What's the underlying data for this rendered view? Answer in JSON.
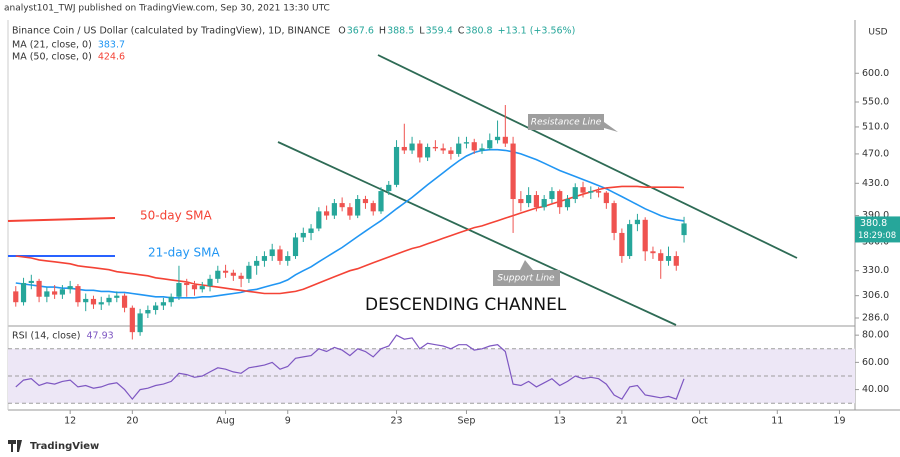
{
  "header": {
    "publisher": "analyst101_TWJ published on TradingView.com, Sep 30, 2021 13:30 UTC",
    "currency": "USD",
    "logo": "TradingView"
  },
  "legend": {
    "symbol": "Binance Coin / US Dollar (calculated by TradingView), 1D, BINANCE",
    "ohlc_labels": [
      "O",
      "H",
      "L",
      "C"
    ],
    "change": "+13.1 (+3.56%)",
    "countdown": "18:29:08"
  },
  "chart_data": [
    {
      "type": "candlestick",
      "log_scale": true,
      "grid": false,
      "up_color": "#26a69a",
      "down_color": "#ef5350",
      "x": [
        "Jul 5",
        "Jul 6",
        "Jul 7",
        "Jul 8",
        "Jul 9",
        "Jul 10",
        "Jul 11",
        "Jul 12",
        "Jul 13",
        "Jul 14",
        "Jul 15",
        "Jul 16",
        "Jul 17",
        "Jul 18",
        "Jul 19",
        "Jul 20",
        "Jul 21",
        "Jul 22",
        "Jul 23",
        "Jul 24",
        "Jul 25",
        "Jul 26",
        "Jul 27",
        "Jul 28",
        "Jul 29",
        "Jul 30",
        "Jul 31",
        "Aug 1",
        "Aug 2",
        "Aug 3",
        "Aug 4",
        "Aug 5",
        "Aug 6",
        "Aug 7",
        "Aug 8",
        "Aug 9",
        "Aug 10",
        "Aug 11",
        "Aug 12",
        "Aug 13",
        "Aug 14",
        "Aug 15",
        "Aug 16",
        "Aug 17",
        "Aug 18",
        "Aug 19",
        "Aug 20",
        "Aug 21",
        "Aug 22",
        "Aug 23",
        "Aug 24",
        "Aug 25",
        "Aug 26",
        "Aug 27",
        "Aug 28",
        "Aug 29",
        "Aug 30",
        "Aug 31",
        "Sep 1",
        "Sep 2",
        "Sep 3",
        "Sep 4",
        "Sep 5",
        "Sep 6",
        "Sep 7",
        "Sep 8",
        "Sep 9",
        "Sep 10",
        "Sep 11",
        "Sep 12",
        "Sep 13",
        "Sep 14",
        "Sep 15",
        "Sep 16",
        "Sep 17",
        "Sep 18",
        "Sep 19",
        "Sep 20",
        "Sep 21",
        "Sep 22",
        "Sep 23",
        "Sep 24",
        "Sep 25",
        "Sep 26",
        "Sep 27",
        "Sep 28",
        "Sep 29"
      ],
      "candles": [
        [
          310,
          315,
          296,
          300
        ],
        [
          300,
          323,
          297,
          318
        ],
        [
          318,
          326,
          312,
          320
        ],
        [
          320,
          322,
          300,
          305
        ],
        [
          305,
          314,
          300,
          310
        ],
        [
          310,
          316,
          303,
          307
        ],
        [
          307,
          316,
          303,
          312
        ],
        [
          312,
          320,
          308,
          315
        ],
        [
          315,
          317,
          296,
          300
        ],
        [
          300,
          308,
          292,
          303
        ],
        [
          303,
          306,
          294,
          298
        ],
        [
          298,
          305,
          293,
          300
        ],
        [
          300,
          307,
          297,
          304
        ],
        [
          304,
          310,
          300,
          306
        ],
        [
          306,
          308,
          291,
          295
        ],
        [
          295,
          297,
          268,
          274
        ],
        [
          274,
          294,
          271,
          290
        ],
        [
          290,
          297,
          286,
          293
        ],
        [
          293,
          300,
          289,
          297
        ],
        [
          297,
          304,
          293,
          300
        ],
        [
          300,
          308,
          296,
          305
        ],
        [
          305,
          335,
          302,
          318
        ],
        [
          318,
          322,
          305,
          316
        ],
        [
          316,
          320,
          306,
          312
        ],
        [
          312,
          319,
          309,
          315
        ],
        [
          315,
          326,
          310,
          322
        ],
        [
          322,
          335,
          318,
          330
        ],
        [
          330,
          336,
          323,
          328
        ],
        [
          328,
          331,
          320,
          325
        ],
        [
          325,
          328,
          314,
          322
        ],
        [
          322,
          339,
          318,
          335
        ],
        [
          335,
          345,
          326,
          340
        ],
        [
          340,
          350,
          334,
          345
        ],
        [
          345,
          358,
          340,
          352
        ],
        [
          352,
          356,
          336,
          340
        ],
        [
          340,
          350,
          335,
          345
        ],
        [
          345,
          370,
          342,
          365
        ],
        [
          365,
          376,
          360,
          370
        ],
        [
          370,
          380,
          362,
          375
        ],
        [
          375,
          400,
          372,
          395
        ],
        [
          395,
          402,
          385,
          390
        ],
        [
          390,
          410,
          386,
          405
        ],
        [
          405,
          412,
          395,
          400
        ],
        [
          400,
          405,
          385,
          390
        ],
        [
          390,
          415,
          387,
          410
        ],
        [
          410,
          414,
          398,
          405
        ],
        [
          405,
          408,
          390,
          395
        ],
        [
          395,
          425,
          392,
          420
        ],
        [
          420,
          433,
          415,
          428
        ],
        [
          428,
          490,
          425,
          480
        ],
        [
          480,
          515,
          470,
          475
        ],
        [
          475,
          495,
          470,
          485
        ],
        [
          485,
          490,
          458,
          465
        ],
        [
          465,
          485,
          460,
          480
        ],
        [
          480,
          490,
          474,
          478
        ],
        [
          478,
          485,
          470,
          475
        ],
        [
          475,
          480,
          462,
          470
        ],
        [
          470,
          495,
          466,
          485
        ],
        [
          485,
          495,
          478,
          487
        ],
        [
          487,
          492,
          470,
          475
        ],
        [
          475,
          485,
          470,
          478
        ],
        [
          478,
          500,
          475,
          490
        ],
        [
          490,
          520,
          485,
          495
        ],
        [
          495,
          545,
          480,
          485
        ],
        [
          485,
          495,
          370,
          410
        ],
        [
          410,
          420,
          395,
          405
        ],
        [
          405,
          425,
          400,
          415
        ],
        [
          415,
          420,
          395,
          400
        ],
        [
          400,
          415,
          396,
          410
        ],
        [
          410,
          425,
          405,
          420
        ],
        [
          420,
          422,
          392,
          400
        ],
        [
          400,
          415,
          396,
          410
        ],
        [
          410,
          430,
          405,
          425
        ],
        [
          425,
          432,
          412,
          418
        ],
        [
          418,
          426,
          410,
          420
        ],
        [
          420,
          425,
          412,
          418
        ],
        [
          418,
          420,
          398,
          405
        ],
        [
          405,
          408,
          362,
          370
        ],
        [
          370,
          375,
          338,
          345
        ],
        [
          345,
          385,
          342,
          380
        ],
        [
          380,
          392,
          372,
          385
        ],
        [
          385,
          388,
          340,
          350
        ],
        [
          350,
          355,
          342,
          348
        ],
        [
          348,
          352,
          322,
          340
        ],
        [
          340,
          355,
          335,
          345
        ],
        [
          345,
          350,
          330,
          335
        ],
        [
          367.6,
          388.5,
          359.4,
          380.8
        ]
      ],
      "series": [
        {
          "name": "MA (21, close, 0)",
          "color": "#2196f3",
          "values": [
            318,
            317,
            316,
            315,
            314,
            314,
            313,
            313,
            312,
            311,
            311,
            310,
            310,
            309,
            309,
            308,
            307,
            306,
            305,
            305,
            304,
            304,
            304,
            304,
            305,
            305,
            306,
            307,
            308,
            309,
            311,
            312,
            314,
            316,
            318,
            321,
            326,
            330,
            334,
            339,
            344,
            349,
            354,
            360,
            366,
            372,
            378,
            384,
            391,
            398,
            405,
            412,
            420,
            428,
            436,
            444,
            452,
            460,
            467,
            472,
            475,
            476,
            476,
            475,
            473,
            470,
            466,
            462,
            457,
            452,
            447,
            443,
            439,
            435,
            431,
            427,
            423,
            418,
            413,
            408,
            403,
            398,
            394,
            390,
            387,
            385,
            383.7
          ]
        },
        {
          "name": "MA (50, close, 0)",
          "color": "#f44336",
          "values": [
            345,
            344,
            343,
            341,
            340,
            339,
            338,
            337,
            335,
            334,
            333,
            332,
            331,
            329,
            328,
            327,
            326,
            325,
            323,
            322,
            321,
            320,
            319,
            317,
            316,
            315,
            314,
            313,
            312,
            311,
            310,
            309,
            308,
            308,
            308,
            309,
            310,
            312,
            315,
            318,
            321,
            324,
            327,
            330,
            332,
            335,
            338,
            341,
            344,
            347,
            350,
            353,
            355,
            358,
            361,
            364,
            367,
            370,
            373,
            376,
            378,
            381,
            384,
            387,
            390,
            393,
            396,
            399,
            401,
            404,
            407,
            410,
            413,
            416,
            419,
            422,
            424,
            425,
            426,
            426,
            426,
            425,
            425,
            425,
            425,
            425,
            424.6
          ]
        }
      ],
      "ylim": [
        280,
        705
      ],
      "yticks": [
        {
          "value": 600,
          "label": "600.0"
        },
        {
          "value": 550,
          "label": "550.0"
        },
        {
          "value": 510,
          "label": "510.0"
        },
        {
          "value": 470,
          "label": "470.0"
        },
        {
          "value": 430,
          "label": "430.0"
        },
        {
          "value": 390,
          "label": "390.0"
        },
        {
          "value": 360,
          "label": "360.0"
        },
        {
          "value": 330,
          "label": "330.0"
        },
        {
          "value": 306,
          "label": "306.0"
        },
        {
          "value": 286,
          "label": "286.0"
        }
      ],
      "xlim": [
        "Jul 4",
        "Oct 21"
      ],
      "xticks": [
        {
          "value": "Jul 12",
          "label": "12"
        },
        {
          "value": "Jul 20",
          "label": "20"
        },
        {
          "value": "Aug 1",
          "label": "Aug"
        },
        {
          "value": "Aug 9",
          "label": "9"
        },
        {
          "value": "Aug 23",
          "label": "23"
        },
        {
          "value": "Sep 1",
          "label": "Sep"
        },
        {
          "value": "Sep 13",
          "label": "13"
        },
        {
          "value": "Sep 21",
          "label": "21"
        },
        {
          "value": "Oct 1",
          "label": "Oct"
        },
        {
          "value": "Oct 11",
          "label": "11"
        },
        {
          "value": "Oct 19",
          "label": "19"
        }
      ],
      "annotations": [
        "50-day SMA",
        "21-day SMA",
        "Resistance Line",
        "Support Line",
        "DESCENDING CHANNEL"
      ]
    },
    {
      "type": "line",
      "series": [
        {
          "name": "RSI (14, close)",
          "color": "#7e57c2",
          "values": [
            42,
            47,
            48,
            43,
            45,
            44,
            46,
            47,
            42,
            43,
            41,
            42,
            44,
            45,
            40,
            33,
            40,
            41,
            43,
            44,
            46,
            52,
            51,
            49,
            50,
            53,
            56,
            55,
            53,
            52,
            56,
            57,
            58,
            60,
            55,
            57,
            63,
            64,
            65,
            70,
            68,
            71,
            69,
            65,
            70,
            68,
            64,
            70,
            72,
            80,
            77,
            78,
            70,
            74,
            73,
            72,
            70,
            73,
            73,
            69,
            70,
            72,
            73,
            68,
            44,
            43,
            46,
            42,
            45,
            48,
            43,
            46,
            50,
            48,
            49,
            48,
            44,
            36,
            33,
            42,
            43,
            36,
            35,
            34,
            35,
            33,
            47.93
          ]
        }
      ],
      "ylim": [
        25,
        86
      ],
      "yticks": [
        {
          "value": 80,
          "label": "80.00"
        },
        {
          "value": 60,
          "label": "60.00"
        },
        {
          "value": 40,
          "label": "40.00"
        }
      ],
      "bands": [
        70,
        50,
        30
      ]
    }
  ]
}
